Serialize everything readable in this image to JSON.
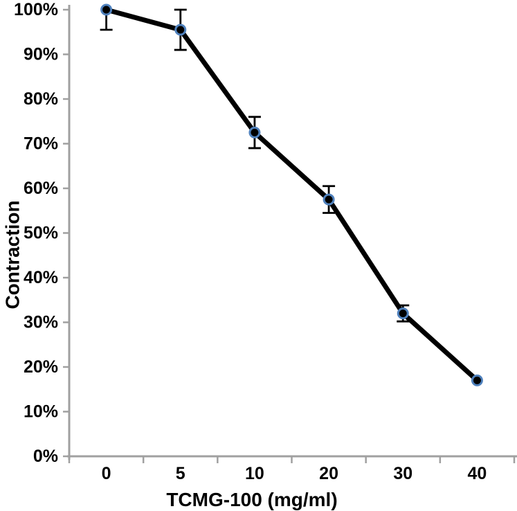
{
  "chart_data": {
    "type": "line",
    "title": "",
    "xlabel": "TCMG-100 (mg/ml)",
    "ylabel": "Contraction",
    "categories": [
      "0",
      "5",
      "10",
      "20",
      "30",
      "40"
    ],
    "series": [
      {
        "name": "Contraction",
        "values": [
          100,
          95.5,
          72.5,
          57.5,
          32,
          17
        ],
        "errors": [
          {
            "up": 0,
            "down": 4.5
          },
          {
            "up": 4.5,
            "down": 4.5
          },
          {
            "up": 3.5,
            "down": 3.5
          },
          {
            "up": 3,
            "down": 3
          },
          {
            "up": 1.8,
            "down": 1.8
          },
          {
            "up": 0,
            "down": 0
          }
        ]
      }
    ],
    "ylim": [
      0,
      100
    ],
    "ytick_step": 10,
    "ytick_labels": [
      "0%",
      "10%",
      "20%",
      "30%",
      "40%",
      "50%",
      "60%",
      "70%",
      "80%",
      "90%",
      "100%"
    ],
    "grid": false,
    "legend": "none",
    "colors": {
      "line": "#000000",
      "marker_fill": "#000000",
      "marker_stroke": "#4f81bd",
      "error_bar": "#000000",
      "axis": "#a0a0a0",
      "text": "#000000",
      "background": "#ffffff"
    }
  }
}
